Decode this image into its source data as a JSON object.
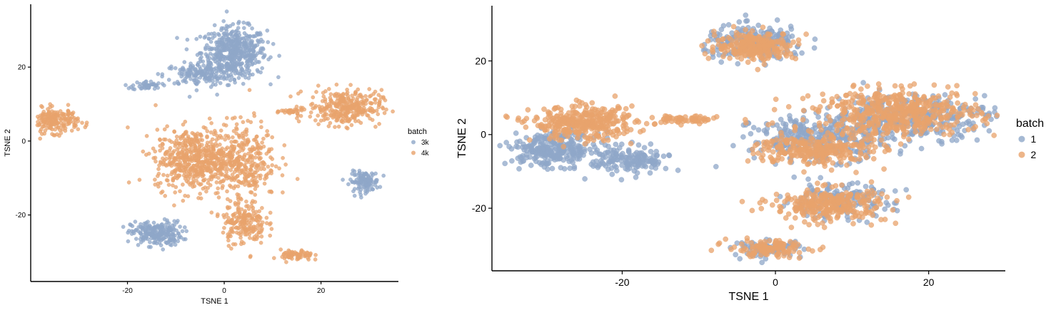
{
  "chart_data": [
    {
      "type": "scatter",
      "xlabel": "TSNE 1",
      "ylabel": "TSNE 2",
      "xlim": [
        -40,
        36
      ],
      "ylim": [
        -38,
        37
      ],
      "xticks": [
        -20,
        0,
        20
      ],
      "yticks": [
        -20,
        0,
        20
      ],
      "grid": false,
      "legend": {
        "title": "batch",
        "placement": "right"
      },
      "series": [
        {
          "name": "3k",
          "color": "#8FA7C8",
          "clusters": [
            {
              "cx": 2,
              "cy": 24,
              "sx": 4.5,
              "sy": 4.5,
              "n": 520
            },
            {
              "cx": -5,
              "cy": 18,
              "sx": 5,
              "sy": 2.0,
              "n": 150
            },
            {
              "cx": -16,
              "cy": 15,
              "sx": 2.0,
              "sy": 0.8,
              "n": 45
            },
            {
              "cx": -14,
              "cy": -25,
              "sx": 3.5,
              "sy": 2.2,
              "n": 230
            },
            {
              "cx": 29,
              "cy": -11,
              "sx": 2.0,
              "sy": 1.8,
              "n": 120
            }
          ]
        },
        {
          "name": "4k",
          "color": "#E8A36C",
          "clusters": [
            {
              "cx": -35,
              "cy": 5.5,
              "sx": 3.2,
              "sy": 2.2,
              "n": 200
            },
            {
              "cx": 14,
              "cy": 8,
              "sx": 1.5,
              "sy": 0.6,
              "n": 30
            },
            {
              "cx": 25,
              "cy": 9,
              "sx": 5,
              "sy": 3.2,
              "n": 330
            },
            {
              "cx": -6,
              "cy": -5,
              "sx": 5.5,
              "sy": 5.5,
              "n": 560
            },
            {
              "cx": 4,
              "cy": -5,
              "sx": 4.5,
              "sy": 7,
              "n": 320
            },
            {
              "cx": 4,
              "cy": -22,
              "sx": 3,
              "sy": 4,
              "n": 200
            },
            {
              "cx": 15,
              "cy": -31,
              "sx": 2.2,
              "sy": 1.0,
              "n": 70
            }
          ]
        }
      ]
    },
    {
      "type": "scatter",
      "xlabel": "TSNE 1",
      "ylabel": "TSNE 2",
      "xlim": [
        -37,
        30
      ],
      "ylim": [
        -37,
        35
      ],
      "xticks": [
        -20,
        0,
        20
      ],
      "yticks": [
        -20,
        0,
        20
      ],
      "grid": false,
      "legend": {
        "title": "batch",
        "placement": "right"
      },
      "series": [
        {
          "name": "1",
          "color": "#8FA7C8",
          "clusters": [
            {
              "cx": -2.5,
              "cy": 25,
              "sx": 4.5,
              "sy": 3,
              "n": 200
            },
            {
              "cx": -29,
              "cy": -4,
              "sx": 4,
              "sy": 3,
              "n": 280
            },
            {
              "cx": -19,
              "cy": -7,
              "sx": 3.5,
              "sy": 2.5,
              "n": 150
            },
            {
              "cx": 6,
              "cy": -1,
              "sx": 6,
              "sy": 4,
              "n": 320
            },
            {
              "cx": 18,
              "cy": 5,
              "sx": 7,
              "sy": 4,
              "n": 320
            },
            {
              "cx": 8,
              "cy": -18,
              "sx": 5,
              "sy": 3,
              "n": 150
            },
            {
              "cx": -1,
              "cy": -31,
              "sx": 3,
              "sy": 1.5,
              "n": 80
            }
          ]
        },
        {
          "name": "2",
          "color": "#E8A36C",
          "clusters": [
            {
              "cx": -2.5,
              "cy": 24,
              "sx": 3.5,
              "sy": 2.5,
              "n": 250
            },
            {
              "cx": -25,
              "cy": 3,
              "sx": 4.5,
              "sy": 3,
              "n": 340
            },
            {
              "cx": -12,
              "cy": 4,
              "sx": 3,
              "sy": 0.8,
              "n": 60
            },
            {
              "cx": 16,
              "cy": 6,
              "sx": 7,
              "sy": 4,
              "n": 500
            },
            {
              "cx": 5,
              "cy": -4,
              "sx": 5,
              "sy": 3,
              "n": 280
            },
            {
              "cx": 7,
              "cy": -19,
              "sx": 5,
              "sy": 3,
              "n": 280
            },
            {
              "cx": -1,
              "cy": -31,
              "sx": 3.5,
              "sy": 1.5,
              "n": 120
            }
          ]
        }
      ]
    }
  ]
}
